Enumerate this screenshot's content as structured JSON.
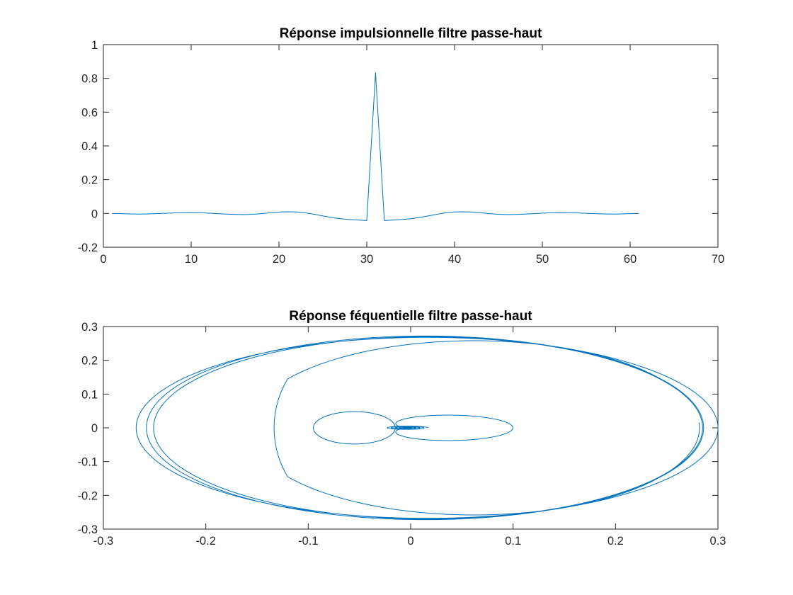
{
  "colors": {
    "series": "#0072BD",
    "axes": "#262626"
  },
  "chart_data": [
    {
      "type": "line",
      "title": "Réponse impulsionnelle filtre passe-haut",
      "xlabel": "",
      "ylabel": "",
      "xlim": [
        0,
        70
      ],
      "ylim": [
        -0.2,
        1
      ],
      "xticks": [
        0,
        10,
        20,
        30,
        40,
        50,
        60,
        70
      ],
      "xtick_labels": [
        "0",
        "10",
        "20",
        "30",
        "40",
        "50",
        "60",
        "70"
      ],
      "yticks": [
        -0.2,
        0,
        0.2,
        0.4,
        0.6,
        0.8,
        1
      ],
      "ytick_labels": [
        "-0.2",
        "0",
        "0.2",
        "0.4",
        "0.6",
        "0.8",
        "1"
      ],
      "grid": false,
      "series": [
        {
          "x": [
            1,
            2,
            3,
            4,
            5,
            6,
            7,
            8,
            9,
            10,
            11,
            12,
            13,
            14,
            15,
            16,
            17,
            18,
            19,
            20,
            21,
            22,
            23,
            24,
            25,
            26,
            27,
            28,
            29,
            30,
            31,
            32,
            33,
            34,
            35,
            36,
            37,
            38,
            39,
            40,
            41,
            42,
            43,
            44,
            45,
            46,
            47,
            48,
            49,
            50,
            51,
            52,
            53,
            54,
            55,
            56,
            57,
            58,
            59,
            60,
            61
          ],
          "y": [
            0.0,
            -0.001,
            -0.003,
            -0.004,
            -0.003,
            -0.001,
            0.001,
            0.003,
            0.004,
            0.005,
            0.004,
            0.002,
            -0.001,
            -0.004,
            -0.006,
            -0.007,
            -0.005,
            -0.001,
            0.004,
            0.008,
            0.01,
            0.009,
            0.004,
            -0.005,
            -0.015,
            -0.024,
            -0.031,
            -0.036,
            -0.039,
            -0.042,
            0.833,
            -0.042,
            -0.039,
            -0.036,
            -0.031,
            -0.024,
            -0.015,
            -0.005,
            0.004,
            0.009,
            0.01,
            0.008,
            0.004,
            -0.001,
            -0.005,
            -0.007,
            -0.006,
            -0.004,
            -0.001,
            0.002,
            0.004,
            0.005,
            0.004,
            0.003,
            0.001,
            -0.001,
            -0.003,
            -0.004,
            -0.003,
            -0.001,
            0.0
          ]
        }
      ]
    },
    {
      "type": "line",
      "title": "Réponse féquentielle filtre passe-haut",
      "xlabel": "",
      "ylabel": "",
      "xlim": [
        -0.3,
        0.3
      ],
      "ylim": [
        -0.3,
        0.3
      ],
      "xticks": [
        -0.3,
        -0.2,
        -0.1,
        0,
        0.1,
        0.2,
        0.3
      ],
      "xtick_labels": [
        "-0.3",
        "-0.2",
        "-0.1",
        "0",
        "0.1",
        "0.2",
        "0.3"
      ],
      "yticks": [
        -0.3,
        -0.2,
        -0.1,
        0,
        0.1,
        0.2,
        0.3
      ],
      "ytick_labels": [
        "-0.3",
        "-0.2",
        "-0.1",
        "0",
        "0.1",
        "0.2",
        "0.3"
      ],
      "grid": false,
      "curve_shape": "parametric closed loops: outer ellipse loops around center (0.015,0) with rx≈0.27, ry≈0.27; inner cardioid loop through (-0.155,0.07)-(0.05,0.26); small spiral near origin",
      "curve_features": {
        "outer_loops": [
          {
            "cx": 0.014,
            "cy": 0.0,
            "rx": 0.272,
            "ry": 0.272
          },
          {
            "cx": 0.017,
            "cy": 0.0,
            "rx": 0.268,
            "ry": 0.27
          },
          {
            "cx": 0.016,
            "cy": 0.0,
            "rx": 0.284,
            "ry": 0.268
          }
        ],
        "middle_loop": {
          "cx": 0.062,
          "cy": 0.0,
          "rx": 0.22,
          "ry": 0.258
        },
        "inner_loop": {
          "cx": -0.055,
          "cy": 0.0,
          "rx": 0.04,
          "ry": 0.048
        },
        "spiral_center": [
          0.0,
          0.0
        ]
      }
    }
  ]
}
